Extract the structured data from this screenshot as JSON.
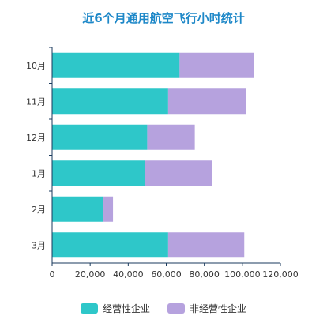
{
  "chart_data": {
    "type": "bar",
    "orientation": "horizontal",
    "stacked": true,
    "title": "近6个月通用航空飞行小时统计",
    "categories": [
      "10月",
      "11月",
      "12月",
      "1月",
      "2月",
      "3月"
    ],
    "series": [
      {
        "name": "经营性企业",
        "color": "#2EC7C9",
        "values": [
          67000,
          61000,
          50000,
          49000,
          27000,
          61000
        ]
      },
      {
        "name": "非经营性企业",
        "color": "#B6A2DE",
        "values": [
          39000,
          41000,
          25000,
          35000,
          5000,
          40000
        ]
      }
    ],
    "xlim": [
      0,
      120000
    ],
    "xticks": [
      0,
      20000,
      40000,
      60000,
      80000,
      100000,
      120000
    ],
    "xtick_labels": [
      "0",
      "20,000",
      "40,000",
      "60,000",
      "80,000",
      "100,000",
      "120,000"
    ],
    "grid": false,
    "legend_position": "bottom"
  }
}
